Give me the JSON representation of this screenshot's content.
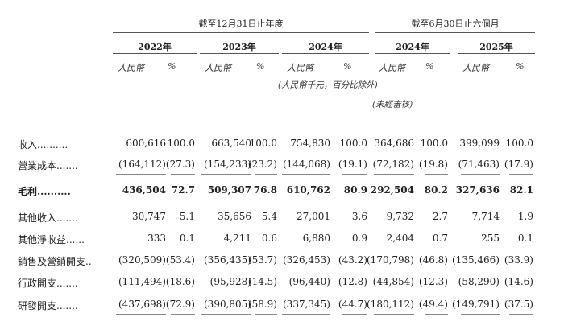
{
  "header": {
    "group_annual": "截至12月31日止年度",
    "group_interim": "截至6月30日止六個月",
    "years": [
      "2022年",
      "2023年",
      "2024年",
      "2024年",
      "2025年"
    ],
    "currency_label": "人民幣",
    "percent_label": "%",
    "unit_note": "(人民幣千元，百分比除外)",
    "unaudited_note": "(未經審核)"
  },
  "rows": [
    {
      "label": "收入..........",
      "bold": false,
      "values": [
        "600,616",
        "100.0",
        "663,540",
        "100.0",
        "754,830",
        "100.0",
        "364,686",
        "100.0",
        "399,099",
        "100.0"
      ]
    },
    {
      "label": "營業成本.......",
      "bold": false,
      "values": [
        "(164,112)",
        "(27.3)",
        "(154,233)",
        "(23.2)",
        "(144,068)",
        "(19.1)",
        "(72,182)",
        "(19.8)",
        "(71,463)",
        "(17.9)"
      ]
    },
    {
      "label": "毛利..........",
      "bold": true,
      "values": [
        "436,504",
        "72.7",
        "509,307",
        "76.8",
        "610,762",
        "80.9",
        "292,504",
        "80.2",
        "327,636",
        "82.1"
      ]
    },
    {
      "label": "其他收入.......",
      "bold": false,
      "values": [
        "30,747",
        "5.1",
        "35,656",
        "5.4",
        "27,001",
        "3.6",
        "9,732",
        "2.7",
        "7,714",
        "1.9"
      ]
    },
    {
      "label": "其他淨收益......",
      "bold": false,
      "values": [
        "333",
        "0.1",
        "4,211",
        "0.6",
        "6,880",
        "0.9",
        "2,404",
        "0.7",
        "255",
        "0.1"
      ]
    },
    {
      "label": "銷售及營銷開支..",
      "bold": false,
      "values": [
        "(320,509)",
        "(53.4)",
        "(356,435)",
        "(53.7)",
        "(326,453)",
        "(43.2)",
        "(170,798)",
        "(46.8)",
        "(135,466)",
        "(33.9)"
      ]
    },
    {
      "label": "行政開支.......",
      "bold": false,
      "values": [
        "(111,494)",
        "(18.6)",
        "(95,928)",
        "(14.5)",
        "(96,440)",
        "(12.8)",
        "(44,854)",
        "(12.3)",
        "(58,290)",
        "(14.6)"
      ]
    },
    {
      "label": "研發開支.......",
      "bold": false,
      "values": [
        "(437,698)",
        "(72.9)",
        "(390,805)",
        "(58.9)",
        "(337,345)",
        "(44.7)",
        "(180,112)",
        "(49.4)",
        "(149,791)",
        "(37.5)"
      ]
    }
  ]
}
